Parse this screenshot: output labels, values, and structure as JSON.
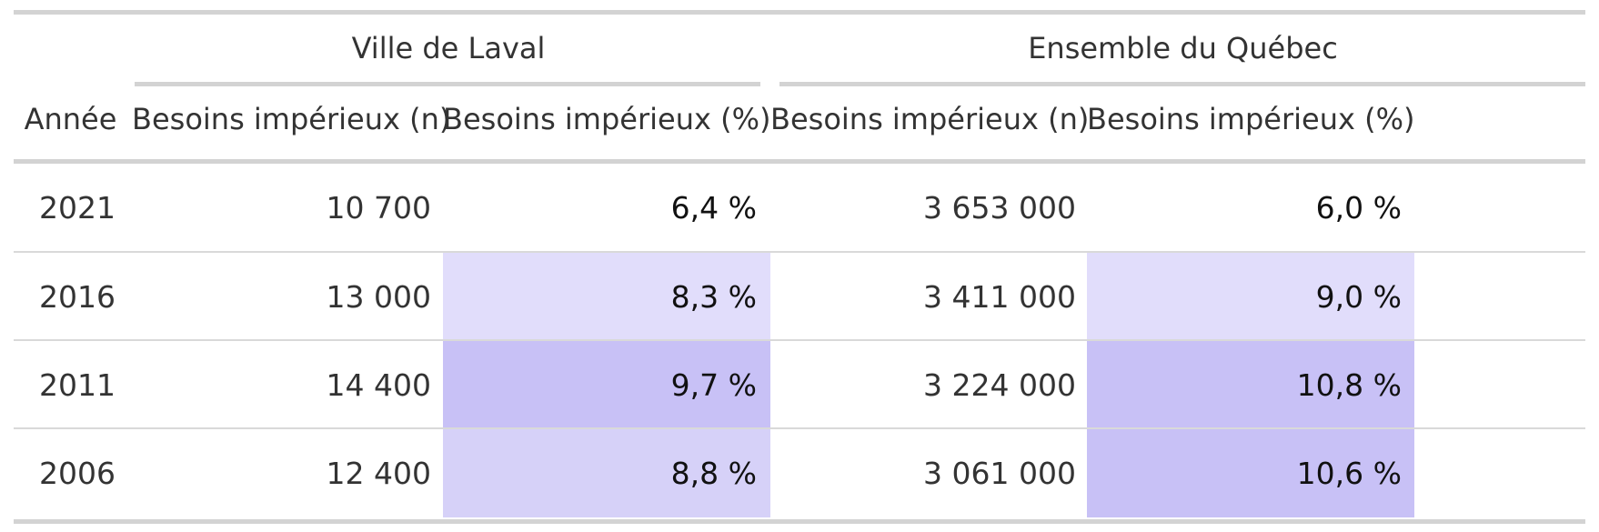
{
  "table": {
    "groups": [
      {
        "label": "Ville de Laval"
      },
      {
        "label": "Ensemble du Québec"
      }
    ],
    "headers": {
      "year": "Année",
      "laval_n": "Besoins impérieux (n)",
      "laval_pct": "Besoins impérieux (%)",
      "quebec_n": "Besoins impérieux (n)",
      "quebec_pct": "Besoins impérieux (%)"
    },
    "rows": [
      {
        "year": "2021",
        "laval_n": "10 700",
        "laval_pct": "6,4 %",
        "quebec_n": "3 653 000",
        "quebec_pct": "6,0 %"
      },
      {
        "year": "2016",
        "laval_n": "13 000",
        "laval_pct": "8,3 %",
        "quebec_n": "3 411 000",
        "quebec_pct": "9,0 %"
      },
      {
        "year": "2011",
        "laval_n": "14 400",
        "laval_pct": "9,7 %",
        "quebec_n": "3 224 000",
        "quebec_pct": "10,8 %"
      },
      {
        "year": "2006",
        "laval_n": "12 400",
        "laval_pct": "8,8 %",
        "quebec_n": "3 061 000",
        "quebec_pct": "10,6 %"
      }
    ],
    "colors": {
      "rule": "#d3d3d3",
      "shade_none": "#ffffff",
      "shade_light": "#e1ddfb",
      "shade_medium": "#d6d1f8",
      "shade_strong": "#c8c1f6"
    },
    "row_shades": [
      {
        "laval_pct": "shade_none",
        "quebec_pct": "shade_none"
      },
      {
        "laval_pct": "shade_light",
        "quebec_pct": "shade_light"
      },
      {
        "laval_pct": "shade_strong",
        "quebec_pct": "shade_strong"
      },
      {
        "laval_pct": "shade_medium",
        "quebec_pct": "shade_strong"
      }
    ]
  }
}
